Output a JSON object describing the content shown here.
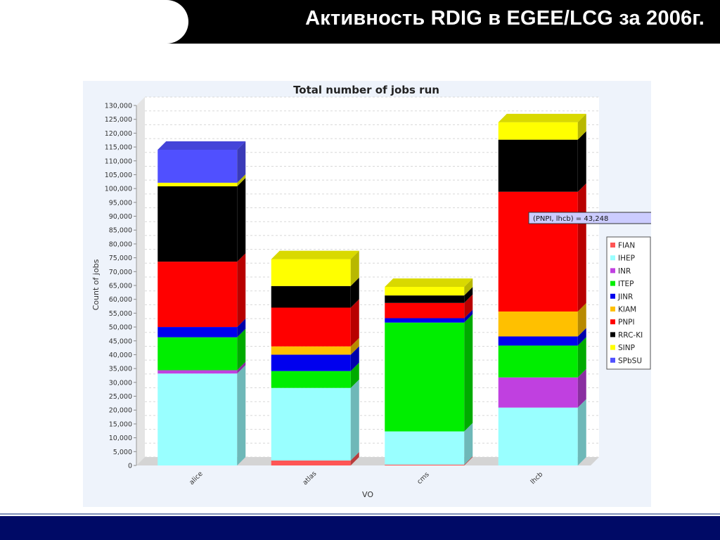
{
  "slide": {
    "title": "Активность RDIG в EGEE/LCG за 2006г."
  },
  "tooltip": {
    "text": "(PNPI, lhcb) = 43,248"
  },
  "chart_data": {
    "type": "bar",
    "stacked": true,
    "three_d": true,
    "title": "Total number of jobs run",
    "xlabel": "VO",
    "ylabel": "Count of jobs",
    "ylim": [
      0,
      130000
    ],
    "ytick_step": 5000,
    "grid": true,
    "legend_position": "right",
    "categories": [
      "alice",
      "atlas",
      "cms",
      "lhcb"
    ],
    "series": [
      {
        "name": "FIAN",
        "color": "#ff5555",
        "values": [
          0,
          1800,
          300,
          0
        ]
      },
      {
        "name": "IHEP",
        "color": "#99ffff",
        "values": [
          33200,
          26200,
          12000,
          20900
        ]
      },
      {
        "name": "INR",
        "color": "#c040e0",
        "values": [
          1200,
          0,
          0,
          10900
        ]
      },
      {
        "name": "ITEP",
        "color": "#00ee00",
        "values": [
          11900,
          6100,
          39300,
          11500
        ]
      },
      {
        "name": "JINR",
        "color": "#0000ee",
        "values": [
          3700,
          5900,
          1600,
          3300
        ]
      },
      {
        "name": "KIAM",
        "color": "#ffc000",
        "values": [
          0,
          3000,
          0,
          9000
        ]
      },
      {
        "name": "PNPI",
        "color": "#ff0000",
        "values": [
          23600,
          14000,
          5500,
          43248
        ]
      },
      {
        "name": "RRC-KI",
        "color": "#000000",
        "values": [
          27200,
          7800,
          2700,
          18800
        ]
      },
      {
        "name": "SINP",
        "color": "#ffff00",
        "values": [
          1300,
          9700,
          3100,
          6300
        ]
      },
      {
        "name": "SPbSU",
        "color": "#5050ff",
        "values": [
          11900,
          0,
          0,
          0
        ]
      }
    ]
  }
}
